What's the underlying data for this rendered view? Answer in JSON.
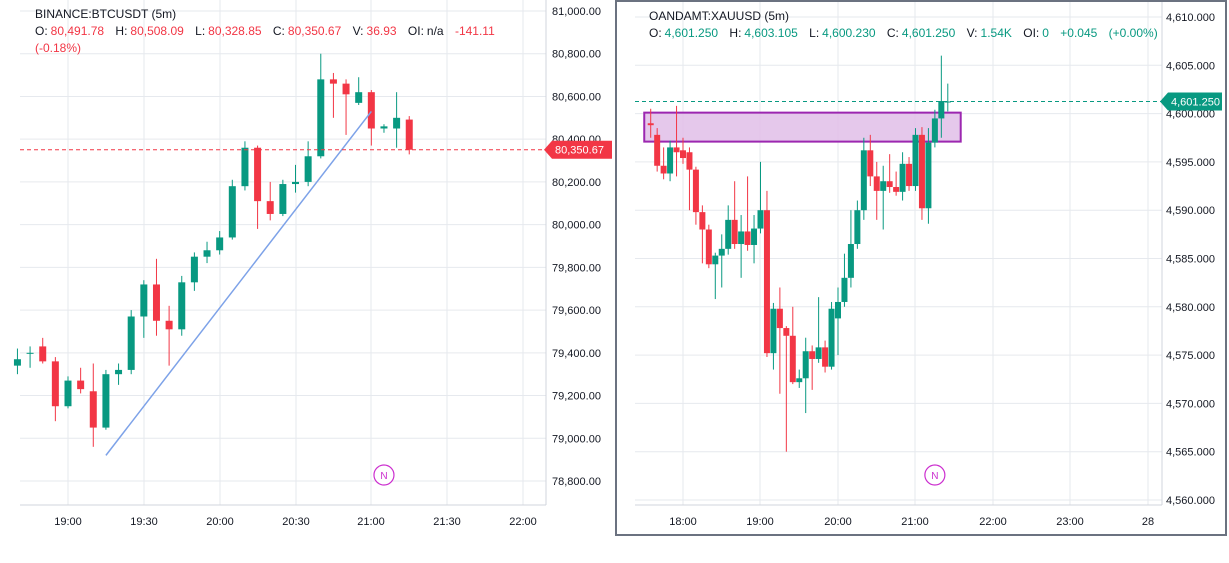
{
  "colors": {
    "up": "#089981",
    "down": "#f23645",
    "grid": "#e6e9ee",
    "zone_fill": "#e1bee7",
    "zone_stroke": "#9c27b0",
    "trend": "#7da2e8",
    "badge": "#cc2fcf"
  },
  "charts": [
    {
      "symbol": "BINANCE:BTCUSDT (5m)",
      "ohlc": [
        {
          "label": "O:",
          "value": "80,491.78"
        },
        {
          "label": "H:",
          "value": "80,508.09"
        },
        {
          "label": "L:",
          "value": "80,328.85"
        },
        {
          "label": "C:",
          "value": "80,350.67"
        },
        {
          "label": "V:",
          "value": "36.93"
        },
        {
          "label": "OI:",
          "value": "n/a"
        }
      ],
      "change": "-141.11",
      "change_pct": "(-0.18%)",
      "price_tag": "80,350.67",
      "badge": "N",
      "y_ticks": [
        "81,000.00",
        "80,800.00",
        "80,600.00",
        "80,400.00",
        "80,200.00",
        "80,000.00",
        "79,800.00",
        "79,600.00",
        "79,400.00",
        "79,200.00",
        "79,000.00",
        "78,800.00"
      ],
      "x_ticks": [
        "19:00",
        "19:30",
        "20:00",
        "20:30",
        "21:00",
        "21:30",
        "22:00"
      ]
    },
    {
      "symbol": "OANDAMT:XAUUSD (5m)",
      "ohlc": [
        {
          "label": "O:",
          "value": "4,601.250"
        },
        {
          "label": "H:",
          "value": "4,603.105"
        },
        {
          "label": "L:",
          "value": "4,600.230"
        },
        {
          "label": "C:",
          "value": "4,601.250"
        },
        {
          "label": "V:",
          "value": "1.54K"
        },
        {
          "label": "OI:",
          "value": "0"
        }
      ],
      "change": "+0.045",
      "change_pct": "(+0.00%)",
      "price_tag": "4,601.250",
      "badge": "N",
      "y_ticks": [
        "4,610.000",
        "4,605.000",
        "4,600.000",
        "4,595.000",
        "4,590.000",
        "4,585.000",
        "4,580.000",
        "4,575.000",
        "4,570.000",
        "4,565.000",
        "4,560.000"
      ],
      "x_ticks": [
        "18:00",
        "19:00",
        "20:00",
        "21:00",
        "22:00",
        "23:00",
        "28"
      ]
    }
  ],
  "chart_data": [
    {
      "type": "candlestick",
      "symbol": "BINANCE:BTCUSDT",
      "interval": "5m",
      "x_unit": "time",
      "ylim": [
        78700,
        81000
      ],
      "last_price": 80350.67,
      "candles": [
        {
          "t": "18:40",
          "o": 79340,
          "h": 79420,
          "l": 79300,
          "c": 79370
        },
        {
          "t": "18:45",
          "o": 79400,
          "h": 79430,
          "l": 79330,
          "c": 79400
        },
        {
          "t": "18:50",
          "o": 79430,
          "h": 79470,
          "l": 79350,
          "c": 79360
        },
        {
          "t": "18:55",
          "o": 79360,
          "h": 79380,
          "l": 79080,
          "c": 79150
        },
        {
          "t": "19:00",
          "o": 79150,
          "h": 79290,
          "l": 79140,
          "c": 79270
        },
        {
          "t": "19:05",
          "o": 79270,
          "h": 79330,
          "l": 79210,
          "c": 79230
        },
        {
          "t": "19:10",
          "o": 79220,
          "h": 79350,
          "l": 78960,
          "c": 79050
        },
        {
          "t": "19:15",
          "o": 79050,
          "h": 79320,
          "l": 79040,
          "c": 79300
        },
        {
          "t": "19:20",
          "o": 79300,
          "h": 79350,
          "l": 79250,
          "c": 79320
        },
        {
          "t": "19:25",
          "o": 79320,
          "h": 79600,
          "l": 79300,
          "c": 79570
        },
        {
          "t": "19:30",
          "o": 79570,
          "h": 79740,
          "l": 79470,
          "c": 79720
        },
        {
          "t": "19:35",
          "o": 79720,
          "h": 79840,
          "l": 79480,
          "c": 79550
        },
        {
          "t": "19:40",
          "o": 79550,
          "h": 79620,
          "l": 79340,
          "c": 79510
        },
        {
          "t": "19:45",
          "o": 79510,
          "h": 79760,
          "l": 79480,
          "c": 79730
        },
        {
          "t": "19:50",
          "o": 79730,
          "h": 79870,
          "l": 79690,
          "c": 79850
        },
        {
          "t": "19:55",
          "o": 79850,
          "h": 79920,
          "l": 79820,
          "c": 79880
        },
        {
          "t": "20:00",
          "o": 79880,
          "h": 79970,
          "l": 79860,
          "c": 79940
        },
        {
          "t": "20:05",
          "o": 79940,
          "h": 80210,
          "l": 79930,
          "c": 80180
        },
        {
          "t": "20:10",
          "o": 80180,
          "h": 80390,
          "l": 80160,
          "c": 80360
        },
        {
          "t": "20:15",
          "o": 80360,
          "h": 80370,
          "l": 79980,
          "c": 80110
        },
        {
          "t": "20:20",
          "o": 80110,
          "h": 80200,
          "l": 80020,
          "c": 80050
        },
        {
          "t": "20:25",
          "o": 80050,
          "h": 80210,
          "l": 80040,
          "c": 80190
        },
        {
          "t": "20:30",
          "o": 80190,
          "h": 80280,
          "l": 80150,
          "c": 80200
        },
        {
          "t": "20:35",
          "o": 80200,
          "h": 80390,
          "l": 80180,
          "c": 80320
        },
        {
          "t": "20:40",
          "o": 80320,
          "h": 80800,
          "l": 80310,
          "c": 80680
        },
        {
          "t": "20:45",
          "o": 80680,
          "h": 80710,
          "l": 80500,
          "c": 80660
        },
        {
          "t": "20:50",
          "o": 80660,
          "h": 80680,
          "l": 80420,
          "c": 80610
        },
        {
          "t": "20:55",
          "o": 80570,
          "h": 80690,
          "l": 80560,
          "c": 80620
        },
        {
          "t": "21:00",
          "o": 80620,
          "h": 80630,
          "l": 80370,
          "c": 80450
        },
        {
          "t": "21:05",
          "o": 80450,
          "h": 80470,
          "l": 80430,
          "c": 80460
        },
        {
          "t": "21:10",
          "o": 80450,
          "h": 80620,
          "l": 80360,
          "c": 80500
        },
        {
          "t": "21:15",
          "o": 80491.78,
          "h": 80508.09,
          "l": 80328.85,
          "c": 80350.67
        }
      ],
      "annotations": [
        {
          "type": "trendline",
          "from": {
            "t": "19:15",
            "price": 78920
          },
          "to": {
            "t": "21:00",
            "price": 80530
          }
        },
        {
          "type": "hline",
          "price": 80350.67,
          "style": "dashed"
        },
        {
          "type": "badge",
          "t": "21:05",
          "text": "N"
        }
      ]
    },
    {
      "type": "candlestick",
      "symbol": "OANDAMT:XAUUSD",
      "interval": "5m",
      "x_unit": "time",
      "ylim": [
        4559,
        4610
      ],
      "last_price": 4601.25,
      "candles": [
        {
          "t": "17:35",
          "o": 4599.0,
          "h": 4600.5,
          "l": 4597.5,
          "c": 4598.8
        },
        {
          "t": "17:40",
          "o": 4597.8,
          "h": 4598.5,
          "l": 4594.0,
          "c": 4594.6
        },
        {
          "t": "17:45",
          "o": 4594.6,
          "h": 4596.5,
          "l": 4593.2,
          "c": 4593.8
        },
        {
          "t": "17:50",
          "o": 4593.8,
          "h": 4597.2,
          "l": 4593.0,
          "c": 4596.5
        },
        {
          "t": "17:55",
          "o": 4596.5,
          "h": 4600.8,
          "l": 4593.5,
          "c": 4596.0
        },
        {
          "t": "18:00",
          "o": 4596.2,
          "h": 4597.5,
          "l": 4594.8,
          "c": 4595.4
        },
        {
          "t": "18:05",
          "o": 4596.0,
          "h": 4596.5,
          "l": 4590.0,
          "c": 4594.2
        },
        {
          "t": "18:10",
          "o": 4594.2,
          "h": 4594.5,
          "l": 4588.5,
          "c": 4589.8
        },
        {
          "t": "18:15",
          "o": 4589.8,
          "h": 4590.5,
          "l": 4584.5,
          "c": 4588.0
        },
        {
          "t": "18:20",
          "o": 4588.0,
          "h": 4588.5,
          "l": 4584.0,
          "c": 4584.4
        },
        {
          "t": "18:25",
          "o": 4584.4,
          "h": 4585.6,
          "l": 4580.8,
          "c": 4585.3
        },
        {
          "t": "18:30",
          "o": 4585.3,
          "h": 4587.5,
          "l": 4582.0,
          "c": 4586.0
        },
        {
          "t": "18:35",
          "o": 4586.0,
          "h": 4590.5,
          "l": 4585.4,
          "c": 4589.0
        },
        {
          "t": "18:40",
          "o": 4589.0,
          "h": 4593.0,
          "l": 4586.0,
          "c": 4586.5
        },
        {
          "t": "18:45",
          "o": 4586.5,
          "h": 4589.5,
          "l": 4583.0,
          "c": 4587.8
        },
        {
          "t": "18:50",
          "o": 4587.8,
          "h": 4593.5,
          "l": 4585.8,
          "c": 4586.4
        },
        {
          "t": "18:55",
          "o": 4586.4,
          "h": 4589.5,
          "l": 4584.5,
          "c": 4588.1
        },
        {
          "t": "19:00",
          "o": 4588.1,
          "h": 4595.0,
          "l": 4587.6,
          "c": 4590.0
        },
        {
          "t": "19:05",
          "o": 4590.0,
          "h": 4592.0,
          "l": 4574.8,
          "c": 4575.2
        },
        {
          "t": "19:10",
          "o": 4575.2,
          "h": 4580.4,
          "l": 4573.5,
          "c": 4579.8
        },
        {
          "t": "19:15",
          "o": 4579.8,
          "h": 4582.0,
          "l": 4571.0,
          "c": 4577.8
        },
        {
          "t": "19:20",
          "o": 4577.8,
          "h": 4578.0,
          "l": 4565.0,
          "c": 4577.0
        },
        {
          "t": "19:25",
          "o": 4577.0,
          "h": 4580.0,
          "l": 4572.0,
          "c": 4572.2
        },
        {
          "t": "19:30",
          "o": 4572.2,
          "h": 4573.5,
          "l": 4571.6,
          "c": 4572.6
        },
        {
          "t": "19:35",
          "o": 4572.6,
          "h": 4576.8,
          "l": 4569.0,
          "c": 4575.4
        },
        {
          "t": "19:40",
          "o": 4575.4,
          "h": 4576.0,
          "l": 4571.4,
          "c": 4574.6
        },
        {
          "t": "19:45",
          "o": 4574.6,
          "h": 4581.0,
          "l": 4574.2,
          "c": 4575.8
        },
        {
          "t": "19:50",
          "o": 4575.8,
          "h": 4576.5,
          "l": 4573.2,
          "c": 4573.8
        },
        {
          "t": "19:55",
          "o": 4573.8,
          "h": 4580.5,
          "l": 4573.5,
          "c": 4579.8
        },
        {
          "t": "20:00",
          "o": 4578.8,
          "h": 4582.0,
          "l": 4575.0,
          "c": 4580.5
        },
        {
          "t": "20:05",
          "o": 4580.5,
          "h": 4585.5,
          "l": 4580.0,
          "c": 4583.0
        },
        {
          "t": "20:10",
          "o": 4583.0,
          "h": 4590.0,
          "l": 4582.0,
          "c": 4586.5
        },
        {
          "t": "20:15",
          "o": 4586.5,
          "h": 4591.0,
          "l": 4586.0,
          "c": 4590.0
        },
        {
          "t": "20:20",
          "o": 4590.0,
          "h": 4597.5,
          "l": 4589.0,
          "c": 4596.2
        },
        {
          "t": "20:25",
          "o": 4596.2,
          "h": 4597.8,
          "l": 4592.5,
          "c": 4593.5
        },
        {
          "t": "20:30",
          "o": 4593.5,
          "h": 4595.0,
          "l": 4589.0,
          "c": 4592.0
        },
        {
          "t": "20:35",
          "o": 4592.0,
          "h": 4594.6,
          "l": 4588.0,
          "c": 4593.0
        },
        {
          "t": "20:40",
          "o": 4593.0,
          "h": 4595.8,
          "l": 4591.8,
          "c": 4592.4
        },
        {
          "t": "20:45",
          "o": 4592.4,
          "h": 4594.0,
          "l": 4591.5,
          "c": 4591.9
        },
        {
          "t": "20:50",
          "o": 4591.9,
          "h": 4596.0,
          "l": 4591.0,
          "c": 4594.8
        },
        {
          "t": "20:55",
          "o": 4594.8,
          "h": 4595.5,
          "l": 4592.0,
          "c": 4592.5
        },
        {
          "t": "21:00",
          "o": 4592.5,
          "h": 4598.5,
          "l": 4592.0,
          "c": 4597.8
        },
        {
          "t": "21:05",
          "o": 4597.8,
          "h": 4598.6,
          "l": 4589.0,
          "c": 4590.2
        },
        {
          "t": "21:10",
          "o": 4590.2,
          "h": 4598.5,
          "l": 4588.6,
          "c": 4597.0
        },
        {
          "t": "21:15",
          "o": 4597.0,
          "h": 4600.4,
          "l": 4596.5,
          "c": 4599.5
        },
        {
          "t": "21:20",
          "o": 4599.5,
          "h": 4606.0,
          "l": 4597.5,
          "c": 4601.3
        },
        {
          "t": "21:25",
          "o": 4601.25,
          "h": 4603.105,
          "l": 4600.23,
          "c": 4601.25
        }
      ],
      "annotations": [
        {
          "type": "zone",
          "from": "17:30",
          "to": "21:35",
          "price_top": 4600.1,
          "price_bottom": 4597.1
        },
        {
          "type": "hline",
          "price": 4601.25,
          "style": "dashed"
        },
        {
          "type": "badge",
          "t": "21:15",
          "text": "N"
        }
      ]
    }
  ]
}
